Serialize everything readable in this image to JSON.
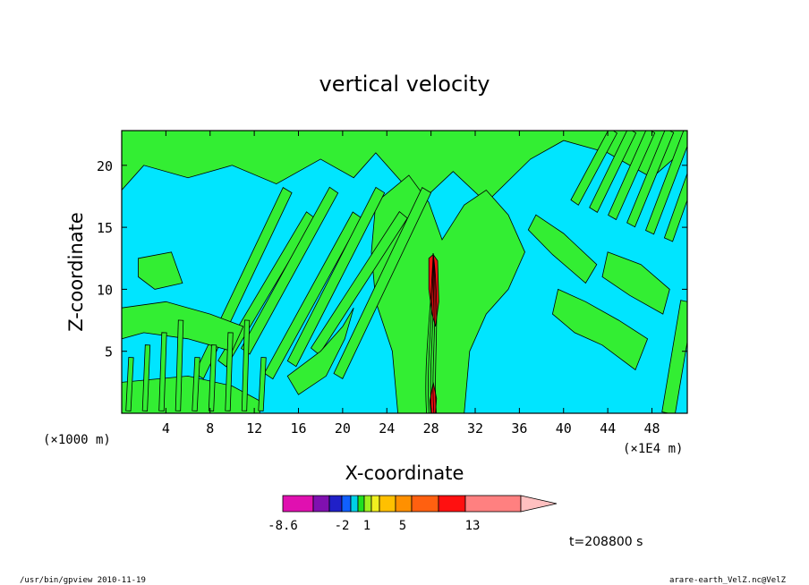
{
  "chart_data": {
    "type": "heatmap",
    "title": "vertical velocity",
    "xlabel": "X-coordinate",
    "ylabel": "Z-coordinate",
    "x_unit_left": "(×1000 m)",
    "x_unit_right": "(×1E4 m)",
    "x_ticks": [
      4,
      8,
      12,
      16,
      20,
      24,
      28,
      32,
      36,
      40,
      44,
      48
    ],
    "y_ticks": [
      5,
      10,
      15,
      20
    ],
    "xlim": [
      0,
      51.2
    ],
    "ylim": [
      0,
      22.8
    ],
    "fill_colors": {
      "negative": "#00e5ff",
      "positive": "#33ee33",
      "strong": "#ee1111",
      "contour": "#000000"
    },
    "colorbar": {
      "colors": [
        "#e010b0",
        "#8010b0",
        "#2020c8",
        "#1060ff",
        "#00d0e8",
        "#20e020",
        "#a0f020",
        "#f0f020",
        "#ffc000",
        "#ff9000",
        "#ff6010",
        "#ff1010",
        "#ff8080",
        "#ffc0c0"
      ],
      "labels": [
        "-8.6",
        "-2",
        "1",
        "5",
        "13"
      ]
    },
    "time_label": "t=208800 s"
  },
  "footer": {
    "left": "/usr/bin/gpview   2010-11-19",
    "right": "arare-earth_VelZ.nc@VelZ"
  }
}
